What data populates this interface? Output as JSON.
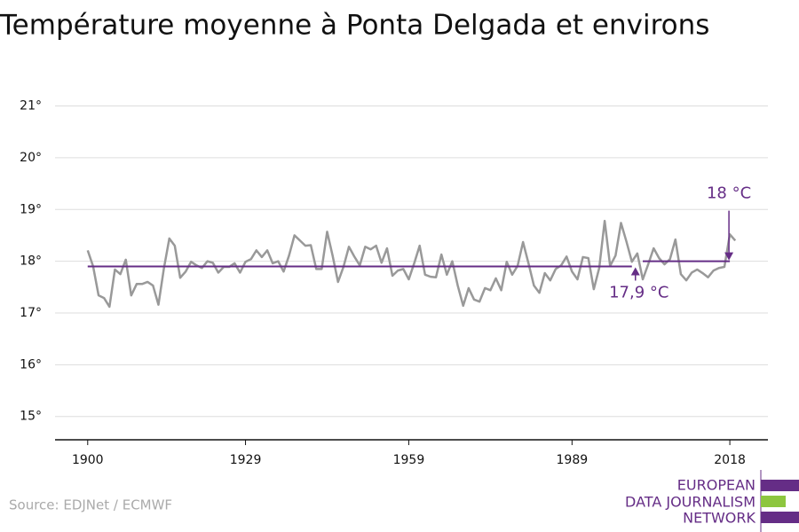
{
  "chart_data": {
    "type": "line",
    "title": "Température moyenne à Ponta Delgada et environs",
    "x": [
      1900,
      1901,
      1902,
      1903,
      1904,
      1905,
      1906,
      1907,
      1908,
      1909,
      1910,
      1911,
      1912,
      1913,
      1914,
      1915,
      1916,
      1917,
      1918,
      1919,
      1920,
      1921,
      1922,
      1923,
      1924,
      1925,
      1926,
      1927,
      1928,
      1929,
      1930,
      1931,
      1932,
      1933,
      1934,
      1935,
      1936,
      1937,
      1938,
      1939,
      1940,
      1941,
      1942,
      1943,
      1944,
      1945,
      1946,
      1947,
      1948,
      1949,
      1950,
      1951,
      1952,
      1953,
      1954,
      1955,
      1956,
      1957,
      1958,
      1959,
      1960,
      1961,
      1962,
      1963,
      1964,
      1965,
      1966,
      1967,
      1968,
      1969,
      1970,
      1971,
      1972,
      1973,
      1974,
      1975,
      1976,
      1977,
      1978,
      1979,
      1980,
      1981,
      1982,
      1983,
      1984,
      1985,
      1986,
      1987,
      1988,
      1989,
      1990,
      1991,
      1992,
      1993,
      1994,
      1995,
      1996,
      1997,
      1998,
      1999,
      2000,
      2001,
      2002,
      2003,
      2004,
      2005,
      2006,
      2007,
      2008,
      2009,
      2010,
      2011,
      2012,
      2013,
      2014,
      2015,
      2016,
      2017,
      2018,
      2019
    ],
    "series": [
      {
        "color": "#999999",
        "values": [
          18.21,
          17.9,
          17.34,
          17.29,
          17.12,
          17.84,
          17.75,
          18.03,
          17.34,
          17.56,
          17.56,
          17.6,
          17.53,
          17.16,
          17.86,
          18.44,
          18.3,
          17.68,
          17.8,
          17.99,
          17.92,
          17.87,
          18.0,
          17.97,
          17.78,
          17.89,
          17.89,
          17.96,
          17.78,
          17.99,
          18.04,
          18.21,
          18.08,
          18.21,
          17.96,
          18.0,
          17.8,
          18.11,
          18.5,
          18.4,
          18.3,
          18.31,
          17.85,
          17.85,
          18.57,
          18.11,
          17.6,
          17.89,
          18.28,
          18.09,
          17.92,
          18.28,
          18.23,
          18.3,
          17.97,
          18.25,
          17.72,
          17.82,
          17.85,
          17.65,
          17.96,
          18.3,
          17.74,
          17.7,
          17.69,
          18.13,
          17.74,
          18.0,
          17.53,
          17.14,
          17.48,
          17.26,
          17.22,
          17.48,
          17.44,
          17.67,
          17.44,
          17.99,
          17.74,
          17.91,
          18.37,
          17.96,
          17.53,
          17.39,
          17.77,
          17.63,
          17.85,
          17.92,
          18.09,
          17.8,
          17.65,
          18.08,
          18.06,
          17.46,
          17.87,
          18.78,
          17.91,
          18.11,
          18.74,
          18.38,
          17.99,
          18.15,
          17.65,
          17.94,
          18.25,
          18.06,
          17.94,
          18.04,
          18.42,
          17.75,
          17.63,
          17.78,
          17.84,
          17.77,
          17.69,
          17.82,
          17.87,
          17.89,
          18.52,
          18.4
        ]
      }
    ],
    "references": [
      {
        "value": 17.9,
        "label": "17,9 °C",
        "start": 1900,
        "end": 2000,
        "color": "#652d86"
      },
      {
        "value": 18,
        "label": "18 °C",
        "start": 2002,
        "end": 2018,
        "color": "#652d86"
      }
    ],
    "xlim": [
      1894,
      2025
    ],
    "xticks": [
      1900,
      1929,
      1959,
      1989,
      2018
    ],
    "ylim": [
      14.55,
      21.3
    ],
    "yticks": [
      {
        "value": 15,
        "label": "15°"
      },
      {
        "value": 16,
        "label": "16°"
      },
      {
        "value": 17,
        "label": "17°"
      },
      {
        "value": 18,
        "label": "18°"
      },
      {
        "value": 19,
        "label": "19°"
      },
      {
        "value": 20,
        "label": "20°"
      },
      {
        "value": 21,
        "label": "21°"
      }
    ],
    "grid": true
  },
  "footer": {
    "source": "Source: EDJNet / ECMWF",
    "logo": [
      "EUROPEAN",
      "DATA JOURNALISM",
      "NETWORK"
    ]
  }
}
